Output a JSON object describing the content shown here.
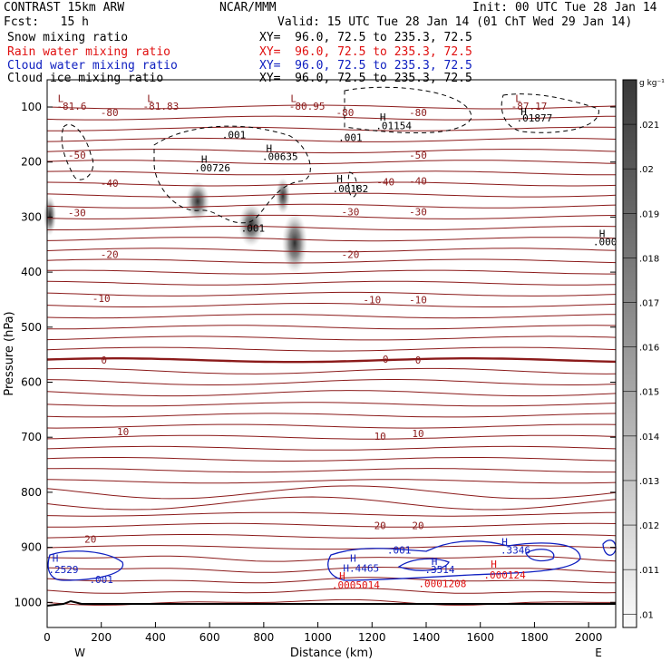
{
  "header": {
    "title": "CONTRAST 15km ARW",
    "fcst": "Fcst:   15 h",
    "center": "NCAR/MMM",
    "init": "Init: 00 UTC Tue 28 Jan 14",
    "valid": "Valid: 15 UTC Tue 28 Jan 14 (01 ChT Wed 29 Jan 14)",
    "fields": [
      {
        "name": "Snow mixing ratio",
        "xy": "XY=  96.0, 72.5 to 235.3, 72.5",
        "color": "#000000"
      },
      {
        "name": "Rain water mixing ratio",
        "xy": "XY=  96.0, 72.5 to 235.3, 72.5",
        "color": "#e01010"
      },
      {
        "name": "Cloud water mixing ratio",
        "xy": "XY=  96.0, 72.5 to 235.3, 72.5",
        "color": "#1020c0"
      },
      {
        "name": "Cloud ice mixing ratio",
        "xy": "XY=  96.0, 72.5 to 235.3, 72.5",
        "color": "#000000"
      }
    ]
  },
  "chart_data": {
    "type": "contour",
    "xlabel": "Distance (km)",
    "ylabel": "Pressure (hPa)",
    "xlim": [
      0,
      2100
    ],
    "ylim": [
      1050,
      75
    ],
    "x_ticks": [
      0,
      200,
      400,
      600,
      800,
      1000,
      1200,
      1400,
      1600,
      1800,
      2000
    ],
    "y_ticks": [
      100,
      200,
      300,
      400,
      500,
      600,
      700,
      800,
      900,
      1000
    ],
    "x_end_labels": {
      "left": "W",
      "right": "E"
    },
    "colorbar": {
      "unit": "g kg⁻¹",
      "ticks": [
        ".021",
        ".02",
        ".019",
        ".018",
        ".017",
        ".016",
        ".015",
        ".014",
        ".013",
        ".012",
        ".011",
        ".01"
      ]
    },
    "temperature_contours": [
      {
        "label": "-80",
        "x": 230,
        "p": 110
      },
      {
        "label": "-80",
        "x": 1100,
        "p": 110
      },
      {
        "label": "-80",
        "x": 1370,
        "p": 110
      },
      {
        "label": "-50",
        "x": 110,
        "p": 187
      },
      {
        "label": "-50",
        "x": 1370,
        "p": 187
      },
      {
        "label": "-40",
        "x": 230,
        "p": 238
      },
      {
        "label": "-40",
        "x": 1250,
        "p": 236
      },
      {
        "label": "-40",
        "x": 1370,
        "p": 234
      },
      {
        "label": "-30",
        "x": 110,
        "p": 292
      },
      {
        "label": "-30",
        "x": 1120,
        "p": 290
      },
      {
        "label": "-30",
        "x": 1370,
        "p": 290
      },
      {
        "label": "-20",
        "x": 230,
        "p": 368
      },
      {
        "label": "-20",
        "x": 1120,
        "p": 368
      },
      {
        "label": "-10",
        "x": 200,
        "p": 448
      },
      {
        "label": "-10",
        "x": 1200,
        "p": 450
      },
      {
        "label": "-10",
        "x": 1370,
        "p": 450
      },
      {
        "label": "0",
        "x": 210,
        "p": 560
      },
      {
        "label": "0",
        "x": 1250,
        "p": 558
      },
      {
        "label": "0",
        "x": 1370,
        "p": 560
      },
      {
        "label": "10",
        "x": 280,
        "p": 690
      },
      {
        "label": "10",
        "x": 1230,
        "p": 698
      },
      {
        "label": "10",
        "x": 1370,
        "p": 693
      },
      {
        "label": "20",
        "x": 160,
        "p": 885
      },
      {
        "label": "20",
        "x": 1230,
        "p": 860
      },
      {
        "label": "20",
        "x": 1370,
        "p": 860
      }
    ],
    "extrema_labels": [
      {
        "text": "L",
        "x": 50,
        "p": 84,
        "color": "#8b1a1a"
      },
      {
        "text": "-81.6",
        "x": 90,
        "p": 98,
        "color": "#8b1a1a"
      },
      {
        "text": "L",
        "x": 380,
        "p": 84,
        "color": "#8b1a1a"
      },
      {
        "text": "-81.83",
        "x": 420,
        "p": 98,
        "color": "#8b1a1a"
      },
      {
        "text": "L",
        "x": 910,
        "p": 84,
        "color": "#8b1a1a"
      },
      {
        "text": "-80.95",
        "x": 960,
        "p": 98,
        "color": "#8b1a1a"
      },
      {
        "text": "L",
        "x": 1740,
        "p": 84,
        "color": "#8b1a1a"
      },
      {
        "text": "-87.17",
        "x": 1780,
        "p": 98,
        "color": "#8b1a1a"
      },
      {
        "text": "H",
        "x": 1240,
        "p": 118,
        "color": "#000000"
      },
      {
        "text": ".01154",
        "x": 1280,
        "p": 134,
        "color": "#000000"
      },
      {
        "text": "H",
        "x": 1760,
        "p": 108,
        "color": "#000000"
      },
      {
        "text": ".01877",
        "x": 1800,
        "p": 120,
        "color": "#000000"
      },
      {
        "text": ".001",
        "x": 690,
        "p": 150,
        "color": "#000000"
      },
      {
        "text": ".001",
        "x": 1120,
        "p": 155,
        "color": "#000000"
      },
      {
        "text": "H",
        "x": 580,
        "p": 195,
        "color": "#000000"
      },
      {
        "text": ".00726",
        "x": 610,
        "p": 210,
        "color": "#000000"
      },
      {
        "text": "H",
        "x": 820,
        "p": 175,
        "color": "#000000"
      },
      {
        "text": ".00635",
        "x": 860,
        "p": 190,
        "color": "#000000"
      },
      {
        "text": "H",
        "x": 1080,
        "p": 230,
        "color": "#000000"
      },
      {
        "text": ".00182",
        "x": 1120,
        "p": 248,
        "color": "#000000"
      },
      {
        "text": ".001",
        "x": 760,
        "p": 320,
        "color": "#000000"
      },
      {
        "text": "H",
        "x": 2050,
        "p": 330,
        "color": "#000000"
      },
      {
        "text": ".000",
        "x": 2060,
        "p": 345,
        "color": "#000000"
      },
      {
        "text": "H",
        "x": 30,
        "p": 920,
        "color": "#1020c0"
      },
      {
        "text": ".2529",
        "x": 60,
        "p": 940,
        "color": "#1020c0"
      },
      {
        "text": ".001",
        "x": 200,
        "p": 958,
        "color": "#1020c0"
      },
      {
        "text": "H",
        "x": 1130,
        "p": 920,
        "color": "#1020c0"
      },
      {
        "text": "H.4465",
        "x": 1160,
        "p": 938,
        "color": "#1020c0"
      },
      {
        "text": ".001",
        "x": 1300,
        "p": 905,
        "color": "#1020c0"
      },
      {
        "text": "H",
        "x": 1430,
        "p": 925,
        "color": "#1020c0"
      },
      {
        "text": ".3514",
        "x": 1450,
        "p": 940,
        "color": "#1020c0"
      },
      {
        "text": "H",
        "x": 1690,
        "p": 890,
        "color": "#1020c0"
      },
      {
        "text": ".3346",
        "x": 1730,
        "p": 905,
        "color": "#1020c0"
      },
      {
        "text": "H",
        "x": 1090,
        "p": 952,
        "color": "#e01010"
      },
      {
        "text": ".0005014",
        "x": 1140,
        "p": 968,
        "color": "#e01010"
      },
      {
        "text": "H",
        "x": 1650,
        "p": 930,
        "color": "#e01010"
      },
      {
        "text": ".000124",
        "x": 1690,
        "p": 950,
        "color": "#e01010"
      },
      {
        "text": ".0001208",
        "x": 1460,
        "p": 966,
        "color": "#e01010"
      }
    ]
  }
}
